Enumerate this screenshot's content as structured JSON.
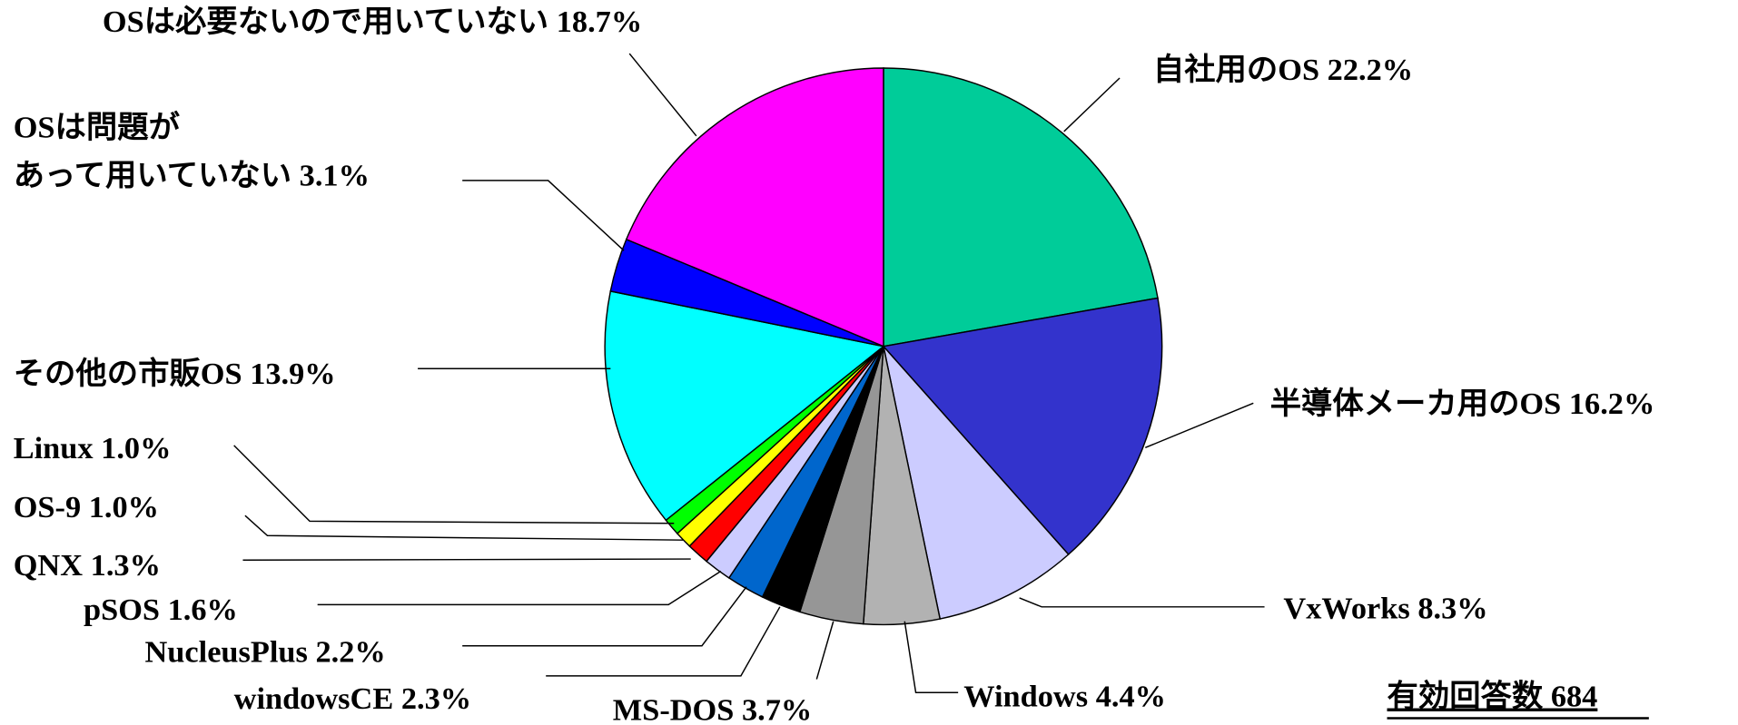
{
  "chart_data": {
    "type": "pie",
    "categories": [
      "自社用のOS",
      "半導体メーカ用のOS",
      "VxWorks",
      "Windows",
      "MS-DOS",
      "windowsCE",
      "NucleusPlus",
      "pSOS",
      "QNX",
      "OS-9",
      "Linux",
      "その他の市販OS",
      "OSは問題が\nあって用いていない",
      "OSは必要ないので用いていない"
    ],
    "values": [
      22.2,
      16.2,
      8.3,
      4.4,
      3.7,
      2.3,
      2.2,
      1.6,
      1.3,
      1.0,
      1.0,
      13.9,
      3.1,
      18.7
    ],
    "value_labels": [
      "22.2%",
      "16.2%",
      "8.3%",
      "4.4%",
      "3.7%",
      "2.3%",
      "2.2%",
      "1.6%",
      "1.3%",
      "1.0%",
      "1.0%",
      "13.9%",
      "3.1%",
      "18.7%"
    ],
    "colors": [
      "#00cc99",
      "#3333cc",
      "#ccccff",
      "#b2b2b2",
      "#969696",
      "#000000",
      "#0066cc",
      "#ccccff",
      "#ff0000",
      "#ffff00",
      "#00ff00",
      "#00ffff",
      "#0000ff",
      "#ff00ff"
    ],
    "note": "有効回答数 684"
  }
}
